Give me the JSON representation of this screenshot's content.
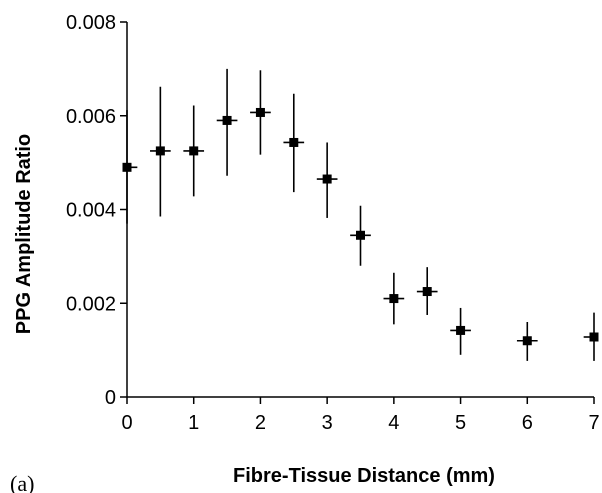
{
  "chart_data": {
    "type": "scatter",
    "title": "",
    "xlabel": "Fibre-Tissue Distance (mm)",
    "ylabel": "PPG Amplitude Ratio",
    "xlim": [
      0,
      7
    ],
    "ylim": [
      0,
      0.008
    ],
    "xticks": [
      "0",
      "1",
      "2",
      "3",
      "4",
      "5",
      "6",
      "7"
    ],
    "yticks": [
      "0",
      "0.002",
      "0.004",
      "0.006",
      "0.008"
    ],
    "grid": false,
    "panel_label": "(a)",
    "points": [
      {
        "x": 0.0,
        "y": 0.0049,
        "err_low": 0.0037,
        "err_high": 0.00612
      },
      {
        "x": 0.5,
        "y": 0.00525,
        "err_low": 0.00385,
        "err_high": 0.00662
      },
      {
        "x": 1.0,
        "y": 0.00525,
        "err_low": 0.00428,
        "err_high": 0.00622
      },
      {
        "x": 1.5,
        "y": 0.0059,
        "err_low": 0.00472,
        "err_high": 0.007
      },
      {
        "x": 2.0,
        "y": 0.00607,
        "err_low": 0.00517,
        "err_high": 0.00697
      },
      {
        "x": 2.5,
        "y": 0.00543,
        "err_low": 0.00437,
        "err_high": 0.00647
      },
      {
        "x": 3.0,
        "y": 0.00465,
        "err_low": 0.00382,
        "err_high": 0.00543
      },
      {
        "x": 3.5,
        "y": 0.00345,
        "err_low": 0.0028,
        "err_high": 0.00408
      },
      {
        "x": 4.0,
        "y": 0.0021,
        "err_low": 0.00155,
        "err_high": 0.00265
      },
      {
        "x": 4.5,
        "y": 0.00225,
        "err_low": 0.00175,
        "err_high": 0.00277
      },
      {
        "x": 5.0,
        "y": 0.00142,
        "err_low": 0.0009,
        "err_high": 0.0019
      },
      {
        "x": 6.0,
        "y": 0.0012,
        "err_low": 0.00077,
        "err_high": 0.0016
      },
      {
        "x": 7.0,
        "y": 0.00128,
        "err_low": 0.00077,
        "err_high": 0.0018
      }
    ]
  }
}
